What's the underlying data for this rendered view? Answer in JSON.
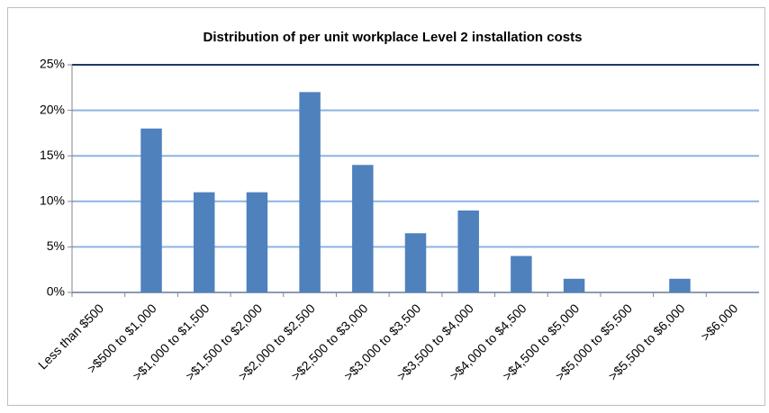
{
  "chart_data": {
    "type": "bar",
    "title": "Distribution of per unit workplace Level 2 installation costs",
    "categories": [
      "Less than $500",
      ">$500 to $1,000",
      ">$1,000 to $1,500",
      ">$1,500 to $2,000",
      ">$2,000 to $2,500",
      ">$2,500 to $3,000",
      ">$3,000 to $3,500",
      ">$3,500 to $4,000",
      ">$4,000 to $4,500",
      ">$4,500 to $5,000",
      ">$5,000 to $5,500",
      ">$5,500 to $6,000",
      ">$6,000"
    ],
    "values": [
      0,
      18,
      11,
      11,
      22,
      14,
      6.5,
      9,
      4,
      1.5,
      0,
      1.5,
      0
    ],
    "color": "#4f81bd",
    "ylim": [
      0,
      25
    ],
    "yticks": [
      {
        "value": 0,
        "label": "0%"
      },
      {
        "value": 5,
        "label": "5%"
      },
      {
        "value": 10,
        "label": "10%"
      },
      {
        "value": 15,
        "label": "15%"
      },
      {
        "value": 20,
        "label": "20%"
      },
      {
        "value": 25,
        "label": "25%"
      }
    ],
    "grid": true
  }
}
